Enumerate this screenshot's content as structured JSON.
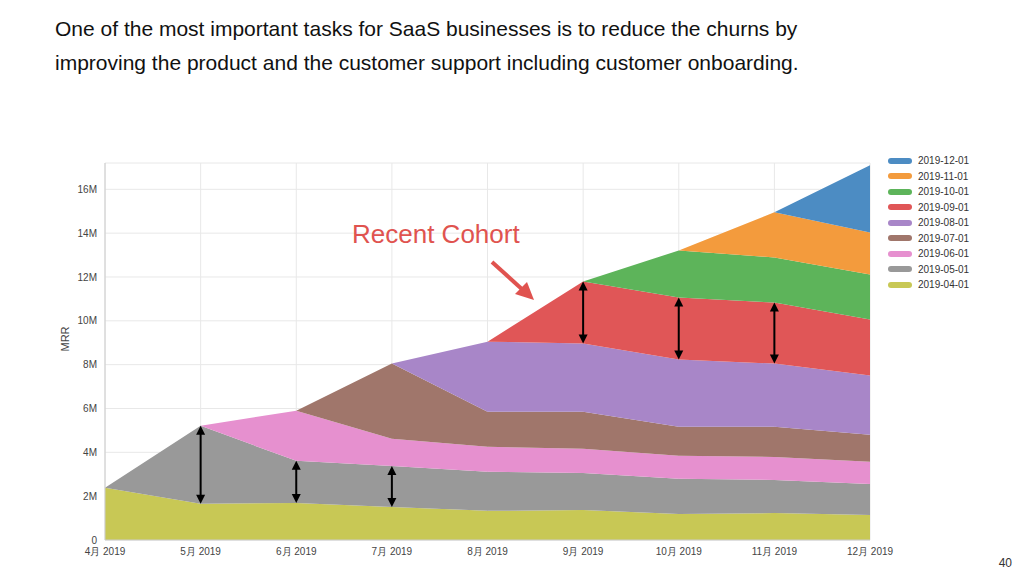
{
  "chart_data": {
    "type": "area",
    "title": "One of the most important tasks for SaaS businesses is to reduce the churns by\nimproving the product and the customer support including customer onboarding.",
    "annotations": [
      "Recent Cohort"
    ],
    "footer": "40",
    "y_label": "MRR",
    "stacked": true,
    "grid": true,
    "legend": "upper right",
    "categories": [
      "4月 2019",
      "5月 2019",
      "6月 2019",
      "7月 2019",
      "8月 2019",
      "9月 2019",
      "10月 2019",
      "11月 2019",
      "12月 2019"
    ],
    "series": [
      {
        "name": "2019-04-01",
        "color": "#c8c855",
        "values": [
          2.38,
          1.65,
          1.69,
          1.51,
          1.33,
          1.37,
          1.19,
          1.23,
          1.14
        ]
      },
      {
        "name": "2019-05-01",
        "color": "#999999",
        "values": [
          0,
          3.56,
          1.92,
          1.87,
          1.78,
          1.69,
          1.6,
          1.51,
          1.42
        ]
      },
      {
        "name": "2019-06-01",
        "color": "#e690cf",
        "values": [
          0,
          0,
          2.29,
          1.24,
          1.14,
          1.1,
          1.05,
          1.05,
          1.01
        ]
      },
      {
        "name": "2019-07-01",
        "color": "#a0766b",
        "values": [
          0,
          0,
          0,
          3.43,
          1.6,
          1.69,
          1.33,
          1.38,
          1.23
        ]
      },
      {
        "name": "2019-08-01",
        "color": "#a886c8",
        "values": [
          0,
          0,
          0,
          0,
          3.2,
          3.11,
          3.06,
          2.88,
          2.7
        ]
      },
      {
        "name": "2019-09-01",
        "color": "#e05657",
        "values": [
          0,
          0,
          0,
          0,
          0,
          2.83,
          2.83,
          2.78,
          2.56
        ]
      },
      {
        "name": "2019-10-01",
        "color": "#5db45a",
        "values": [
          0,
          0,
          0,
          0,
          0,
          0,
          2.15,
          2.06,
          2.05
        ]
      },
      {
        "name": "2019-11-01",
        "color": "#f39b3d",
        "values": [
          0,
          0,
          0,
          0,
          0,
          0,
          0,
          2.06,
          1.92
        ]
      },
      {
        "name": "2019-12-01",
        "color": "#4c8cc3",
        "values": [
          0,
          0,
          0,
          0,
          0,
          0,
          0,
          0,
          3.07
        ]
      }
    ],
    "ylim": [
      0,
      17.2
    ],
    "yticks": [
      0,
      {
        "value": 2,
        "label": "2M"
      },
      {
        "value": 4,
        "label": "4M"
      },
      {
        "value": 6,
        "label": "6M"
      },
      {
        "value": 8,
        "label": "8M"
      },
      {
        "value": 10,
        "label": "10M"
      },
      {
        "value": 12,
        "label": "12M"
      },
      {
        "value": 14,
        "label": "14M"
      },
      {
        "value": 16,
        "label": "16M"
      }
    ]
  }
}
